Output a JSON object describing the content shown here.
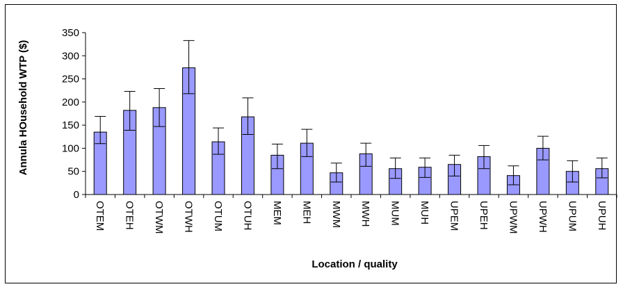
{
  "chart_data": {
    "type": "bar",
    "title": "",
    "xlabel": "Location /  quality",
    "ylabel": "Annula HOusehold WTP ($)",
    "ylim": [
      0,
      350
    ],
    "yticks": [
      0,
      50,
      100,
      150,
      200,
      250,
      300,
      350
    ],
    "grid": false,
    "legend": "none",
    "bar_color": "#9999ff",
    "categories": [
      "OTEM",
      "OTEH",
      "OTWM",
      "OTWH",
      "OTUM",
      "OTUH",
      "MEM",
      "MEH",
      "MWM",
      "MWH",
      "MUM",
      "MUH",
      "UPEM",
      "UPEH",
      "UPWM",
      "UPWH",
      "UPUM",
      "UPUH"
    ],
    "values": [
      135,
      182,
      188,
      274,
      114,
      168,
      85,
      111,
      47,
      88,
      56,
      59,
      65,
      82,
      41,
      100,
      50,
      56
    ],
    "error_upper": [
      169,
      223,
      229,
      333,
      144,
      209,
      109,
      141,
      68,
      111,
      79,
      79,
      85,
      106,
      62,
      126,
      73,
      79
    ],
    "error_lower": [
      110,
      139,
      147,
      218,
      87,
      130,
      56,
      82,
      27,
      61,
      35,
      37,
      40,
      56,
      21,
      75,
      27,
      36
    ]
  }
}
